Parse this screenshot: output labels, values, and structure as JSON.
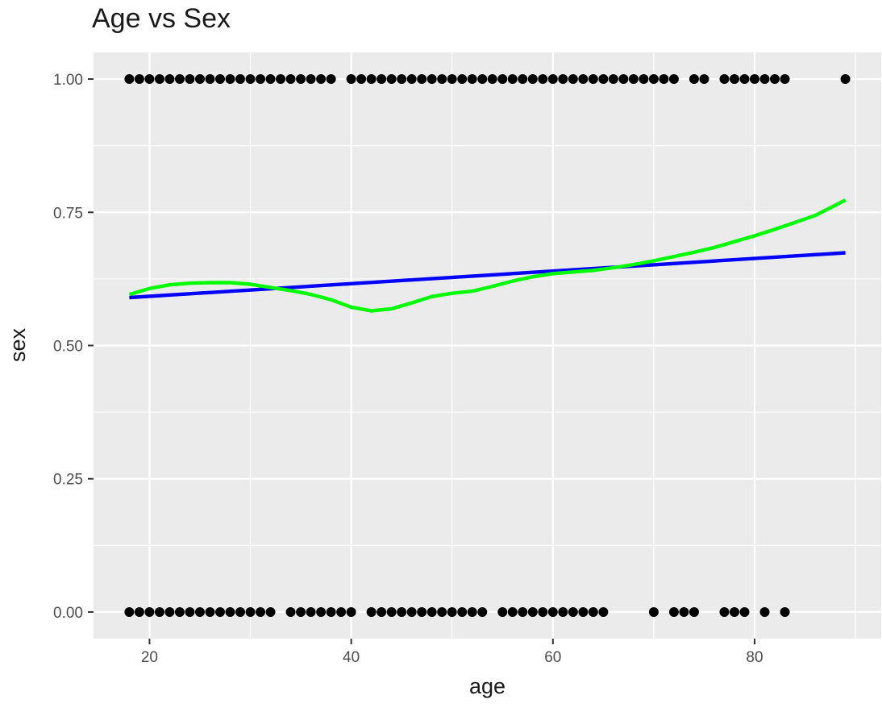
{
  "chart_data": {
    "type": "scatter",
    "title": "Age vs Sex",
    "xlabel": "age",
    "ylabel": "sex",
    "xlim": [
      14.45,
      92.55
    ],
    "ylim": [
      -0.05,
      1.05
    ],
    "x_ticks": [
      20,
      40,
      60,
      80
    ],
    "x_tick_labels": [
      "20",
      "40",
      "60",
      "80"
    ],
    "y_ticks": [
      0,
      0.25,
      0.5,
      0.75,
      1
    ],
    "y_tick_labels": [
      "0.00",
      "0.25",
      "0.50",
      "0.75",
      "1.00"
    ],
    "grid": true,
    "legend": "none",
    "points_sex_1_age": [
      18,
      19,
      20,
      21,
      22,
      23,
      24,
      25,
      26,
      27,
      28,
      29,
      30,
      31,
      32,
      33,
      34,
      35,
      36,
      37,
      38,
      40,
      41,
      42,
      43,
      44,
      45,
      46,
      47,
      48,
      49,
      50,
      51,
      52,
      53,
      54,
      55,
      56,
      57,
      58,
      59,
      60,
      61,
      62,
      63,
      64,
      65,
      66,
      67,
      68,
      69,
      70,
      71,
      72,
      74,
      75,
      77,
      78,
      79,
      80,
      81,
      82,
      83,
      89
    ],
    "points_sex_0_age": [
      18,
      19,
      20,
      21,
      22,
      23,
      24,
      25,
      26,
      27,
      28,
      29,
      30,
      31,
      32,
      34,
      35,
      36,
      37,
      38,
      39,
      40,
      42,
      43,
      44,
      45,
      46,
      47,
      48,
      49,
      50,
      51,
      52,
      53,
      55,
      56,
      57,
      58,
      59,
      60,
      61,
      62,
      63,
      64,
      65,
      70,
      72,
      73,
      74,
      77,
      78,
      79,
      81,
      83
    ],
    "series": [
      {
        "type": "line",
        "color": "#0000ff",
        "x": [
          18,
          89
        ],
        "y": [
          0.59,
          0.674
        ]
      },
      {
        "type": "line",
        "color": "#00ff00",
        "x": [
          18,
          20,
          22,
          24,
          26,
          28,
          30,
          32,
          34,
          36,
          38,
          40,
          42,
          44,
          46,
          48,
          50,
          52,
          54,
          56,
          58,
          60,
          62,
          64,
          66,
          68,
          70,
          72,
          74,
          76,
          78,
          80,
          82,
          84,
          86,
          89
        ],
        "y": [
          0.596,
          0.607,
          0.614,
          0.617,
          0.618,
          0.618,
          0.615,
          0.609,
          0.603,
          0.596,
          0.586,
          0.572,
          0.565,
          0.569,
          0.58,
          0.592,
          0.598,
          0.602,
          0.611,
          0.621,
          0.629,
          0.635,
          0.638,
          0.641,
          0.646,
          0.652,
          0.659,
          0.667,
          0.675,
          0.684,
          0.695,
          0.706,
          0.718,
          0.731,
          0.744,
          0.773
        ]
      }
    ],
    "point_color": "#000000",
    "panel_background": "#ebebeb",
    "grid_color": "#ffffff"
  }
}
